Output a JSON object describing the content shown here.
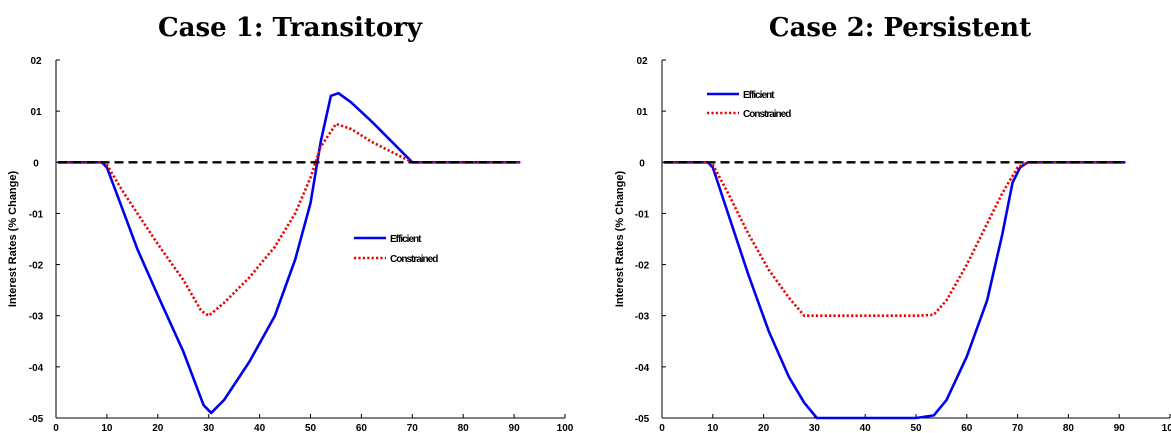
{
  "chart_data": [
    {
      "type": "line",
      "title": "Case 1: Transitory",
      "ylabel": "Interest Rates (% Change)",
      "xlabel": "",
      "xlim": [
        0,
        10
      ],
      "ylim": [
        -0.5,
        0.2
      ],
      "xticks": [
        0,
        1,
        2,
        3,
        4,
        5,
        6,
        7,
        8,
        9,
        10
      ],
      "xtick_labels": [
        "0",
        "10",
        "20",
        "30",
        "40",
        "50",
        "60",
        "70",
        "80",
        "90",
        "100"
      ],
      "yticks": [
        0.2,
        0.1,
        0,
        -0.1,
        -0.2,
        -0.3,
        -0.4,
        -0.5
      ],
      "ytick_labels": [
        "02",
        "01",
        "0",
        "-01",
        "-02",
        "-03",
        "-04",
        "-05"
      ],
      "legend_position": "center-right",
      "grid": false,
      "series": [
        {
          "name": "Efficient",
          "color": "#0000ee",
          "style": "solid",
          "points": [
            [
              0.05,
              0
            ],
            [
              0.9,
              0
            ],
            [
              1.0,
              -0.01
            ],
            [
              1.3,
              -0.09
            ],
            [
              1.6,
              -0.17
            ],
            [
              2.0,
              -0.26
            ],
            [
              2.5,
              -0.37
            ],
            [
              2.9,
              -0.475
            ],
            [
              3.05,
              -0.49
            ],
            [
              3.3,
              -0.465
            ],
            [
              3.8,
              -0.39
            ],
            [
              4.3,
              -0.3
            ],
            [
              4.7,
              -0.19
            ],
            [
              5.0,
              -0.08
            ],
            [
              5.2,
              0.04
            ],
            [
              5.4,
              0.13
            ],
            [
              5.55,
              0.135
            ],
            [
              5.8,
              0.117
            ],
            [
              6.2,
              0.08
            ],
            [
              6.6,
              0.04
            ],
            [
              6.9,
              0.01
            ],
            [
              7.0,
              0
            ],
            [
              9.1,
              0
            ]
          ]
        },
        {
          "name": "Constrained",
          "color": "#ee0000",
          "style": "dotted",
          "points": [
            [
              0.05,
              0
            ],
            [
              0.9,
              0
            ],
            [
              1.0,
              -0.005
            ],
            [
              1.3,
              -0.055
            ],
            [
              1.6,
              -0.1
            ],
            [
              2.0,
              -0.16
            ],
            [
              2.5,
              -0.23
            ],
            [
              2.85,
              -0.29
            ],
            [
              3.0,
              -0.3
            ],
            [
              3.3,
              -0.275
            ],
            [
              3.8,
              -0.225
            ],
            [
              4.3,
              -0.165
            ],
            [
              4.7,
              -0.1
            ],
            [
              5.0,
              -0.03
            ],
            [
              5.2,
              0.03
            ],
            [
              5.5,
              0.075
            ],
            [
              5.8,
              0.065
            ],
            [
              6.2,
              0.04
            ],
            [
              6.6,
              0.02
            ],
            [
              7.0,
              0
            ],
            [
              9.1,
              0
            ]
          ]
        },
        {
          "name": "",
          "color": "#000000",
          "style": "dashed",
          "points": [
            [
              0.05,
              0
            ],
            [
              9.1,
              0
            ]
          ]
        }
      ]
    },
    {
      "type": "line",
      "title": "Case 2: Persistent",
      "ylabel": "Interest Rates (% Change)",
      "xlabel": "",
      "xlim": [
        0,
        10
      ],
      "ylim": [
        -0.5,
        0.2
      ],
      "xticks": [
        0,
        1,
        2,
        3,
        4,
        5,
        6,
        7,
        8,
        9,
        10
      ],
      "xtick_labels": [
        "0",
        "10",
        "20",
        "30",
        "40",
        "50",
        "60",
        "70",
        "80",
        "90",
        "100"
      ],
      "yticks": [
        0.2,
        0.1,
        0,
        -0.1,
        -0.2,
        -0.3,
        -0.4,
        -0.5
      ],
      "ytick_labels": [
        "02",
        "01",
        "0",
        "-01",
        "-02",
        "-03",
        "-04",
        "-05"
      ],
      "legend_position": "top-left",
      "grid": false,
      "series": [
        {
          "name": "Efficient",
          "color": "#0000ee",
          "style": "solid",
          "points": [
            [
              0.05,
              0
            ],
            [
              0.9,
              0
            ],
            [
              1.0,
              -0.01
            ],
            [
              1.3,
              -0.1
            ],
            [
              1.7,
              -0.22
            ],
            [
              2.1,
              -0.33
            ],
            [
              2.5,
              -0.42
            ],
            [
              2.8,
              -0.47
            ],
            [
              3.05,
              -0.5
            ],
            [
              5.0,
              -0.5
            ],
            [
              5.35,
              -0.495
            ],
            [
              5.6,
              -0.465
            ],
            [
              6.0,
              -0.38
            ],
            [
              6.4,
              -0.27
            ],
            [
              6.7,
              -0.14
            ],
            [
              6.9,
              -0.04
            ],
            [
              7.05,
              -0.01
            ],
            [
              7.2,
              0
            ],
            [
              9.1,
              0
            ]
          ]
        },
        {
          "name": "Constrained",
          "color": "#ee0000",
          "style": "dotted",
          "points": [
            [
              0.05,
              0
            ],
            [
              0.9,
              0
            ],
            [
              1.0,
              -0.005
            ],
            [
              1.3,
              -0.06
            ],
            [
              1.7,
              -0.14
            ],
            [
              2.1,
              -0.21
            ],
            [
              2.5,
              -0.265
            ],
            [
              2.8,
              -0.3
            ],
            [
              3.05,
              -0.3
            ],
            [
              5.0,
              -0.3
            ],
            [
              5.35,
              -0.298
            ],
            [
              5.6,
              -0.27
            ],
            [
              6.0,
              -0.2
            ],
            [
              6.4,
              -0.12
            ],
            [
              6.7,
              -0.06
            ],
            [
              7.0,
              -0.01
            ],
            [
              7.2,
              0
            ],
            [
              9.1,
              0
            ]
          ]
        },
        {
          "name": "",
          "color": "#000000",
          "style": "dashed",
          "points": [
            [
              0.05,
              0
            ],
            [
              9.1,
              0
            ]
          ]
        }
      ]
    }
  ]
}
